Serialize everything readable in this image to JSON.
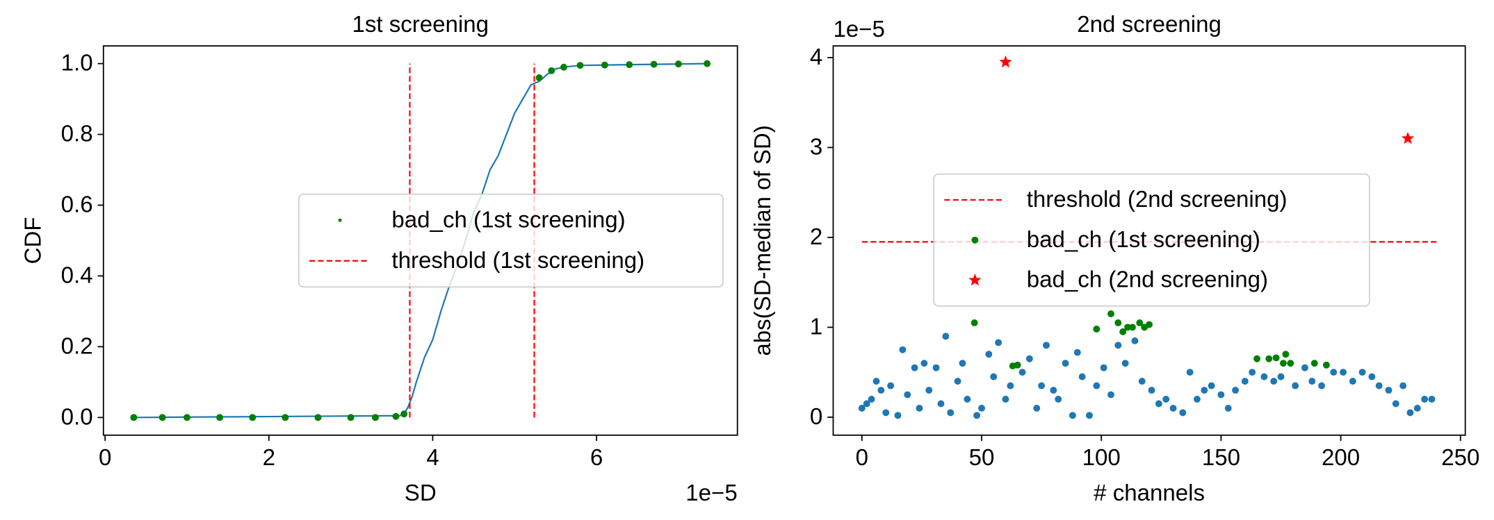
{
  "chart_data": [
    {
      "type": "line",
      "title": "1st screening",
      "xlabel": "SD",
      "ylabel": "CDF",
      "x_offset_label": "1e−5",
      "xlim": [
        -0.02,
        7.72
      ],
      "ylim": [
        -0.05,
        1.05
      ],
      "xticks": [
        0,
        2,
        4,
        6
      ],
      "yticks": [
        {
          "value": 0,
          "label": "0.0"
        },
        0.2,
        0.4,
        0.6,
        0.8,
        {
          "value": 1,
          "label": "1.0"
        }
      ],
      "series": [
        {
          "kind": "line",
          "color": "#1f77b4",
          "x": [
            0.35,
            3.6,
            3.65,
            3.7,
            3.75,
            3.8,
            3.9,
            4.0,
            4.1,
            4.2,
            4.3,
            4.4,
            4.5,
            4.6,
            4.7,
            4.8,
            4.9,
            5.0,
            5.1,
            5.2,
            5.3,
            5.4,
            5.5,
            5.6,
            5.8,
            7.35
          ],
          "values": [
            0,
            0.005,
            0.01,
            0.03,
            0.06,
            0.1,
            0.17,
            0.22,
            0.3,
            0.37,
            0.43,
            0.5,
            0.58,
            0.63,
            0.7,
            0.74,
            0.8,
            0.86,
            0.9,
            0.94,
            0.95,
            0.97,
            0.985,
            0.99,
            0.995,
            1.0
          ]
        },
        {
          "kind": "dot",
          "name": "bad_ch (1st screening)",
          "color": "#008000",
          "x": [
            0.35,
            0.7,
            1.0,
            1.4,
            1.8,
            2.2,
            2.6,
            3.0,
            3.3,
            3.55,
            3.65,
            5.3,
            5.45,
            5.6,
            5.8,
            6.1,
            6.4,
            6.7,
            7.0,
            7.35
          ],
          "values": [
            0,
            0,
            0,
            0,
            0,
            0,
            0,
            0,
            0,
            0.003,
            0.01,
            0.96,
            0.98,
            0.99,
            0.995,
            0.996,
            0.997,
            0.998,
            0.999,
            1.0
          ]
        }
      ],
      "threshold": {
        "name": "threshold (1st screening)",
        "color": "#ff0000",
        "orientation": "vertical",
        "positions": [
          3.72,
          5.24
        ],
        "span": [
          0,
          1
        ]
      }
    },
    {
      "type": "scatter",
      "title": "2nd screening",
      "xlabel": "# channels",
      "ylabel": "abs(SD-median of SD)",
      "y_offset_label": "1e−5",
      "xlim": [
        -12,
        252
      ],
      "ylim": [
        -0.2,
        4.13
      ],
      "xticks": [
        0,
        50,
        100,
        150,
        200,
        250
      ],
      "yticks": [
        0,
        1,
        2,
        3,
        4
      ],
      "series": [
        {
          "kind": "dot",
          "color": "#1f77b4",
          "x": [
            0,
            2,
            4,
            6,
            8,
            10,
            12,
            15,
            17,
            19,
            22,
            24,
            26,
            28,
            31,
            33,
            35,
            37,
            40,
            42,
            44,
            48,
            50,
            53,
            55,
            57,
            60,
            62,
            67,
            70,
            73,
            75,
            77,
            80,
            82,
            85,
            88,
            90,
            92,
            95,
            98,
            101,
            104,
            107,
            110,
            114,
            117,
            121,
            124,
            127,
            130,
            134,
            137,
            140,
            143,
            146,
            150,
            153,
            156,
            160,
            163,
            168,
            172,
            175,
            181,
            185,
            188,
            192,
            197,
            201,
            205,
            209,
            213,
            216,
            220,
            223,
            226,
            229,
            232,
            235,
            238
          ],
          "values": [
            0.1,
            0.15,
            0.2,
            0.4,
            0.3,
            0.05,
            0.35,
            0.02,
            0.75,
            0.25,
            0.55,
            0.1,
            0.6,
            0.3,
            0.55,
            0.15,
            0.9,
            0.05,
            0.4,
            0.6,
            0.2,
            0.02,
            0.1,
            0.7,
            0.45,
            0.83,
            0.2,
            0.35,
            0.5,
            0.65,
            0.1,
            0.35,
            0.8,
            0.3,
            0.2,
            0.6,
            0.02,
            0.72,
            0.45,
            0.02,
            0.35,
            0.55,
            0.25,
            0.8,
            0.6,
            0.85,
            0.4,
            0.3,
            0.15,
            0.2,
            0.1,
            0.05,
            0.5,
            0.2,
            0.3,
            0.35,
            0.25,
            0.1,
            0.3,
            0.4,
            0.5,
            0.45,
            0.4,
            0.45,
            0.35,
            0.55,
            0.4,
            0.35,
            0.5,
            0.5,
            0.4,
            0.5,
            0.45,
            0.35,
            0.3,
            0.15,
            0.35,
            0.05,
            0.1,
            0.2,
            0.2
          ]
        },
        {
          "kind": "dot",
          "name": "bad_ch (1st screening)",
          "color": "#008000",
          "x": [
            47,
            63,
            65,
            98,
            104,
            107,
            109,
            111,
            113,
            116,
            118,
            120,
            165,
            170,
            173,
            176,
            177,
            179,
            189,
            194
          ],
          "values": [
            1.05,
            0.57,
            0.58,
            0.98,
            1.15,
            1.05,
            0.95,
            1.0,
            1.0,
            1.05,
            1.0,
            1.03,
            0.65,
            0.65,
            0.66,
            0.6,
            0.7,
            0.6,
            0.6,
            0.58
          ]
        },
        {
          "kind": "star",
          "name": "bad_ch (2nd screening)",
          "color": "#ff0000",
          "x": [
            60,
            228
          ],
          "values": [
            3.95,
            3.1
          ]
        }
      ],
      "threshold": {
        "name": "threshold (2nd screening)",
        "color": "#ff0000",
        "orientation": "horizontal",
        "positions": [
          1.95
        ],
        "span": [
          0,
          240
        ]
      }
    }
  ]
}
